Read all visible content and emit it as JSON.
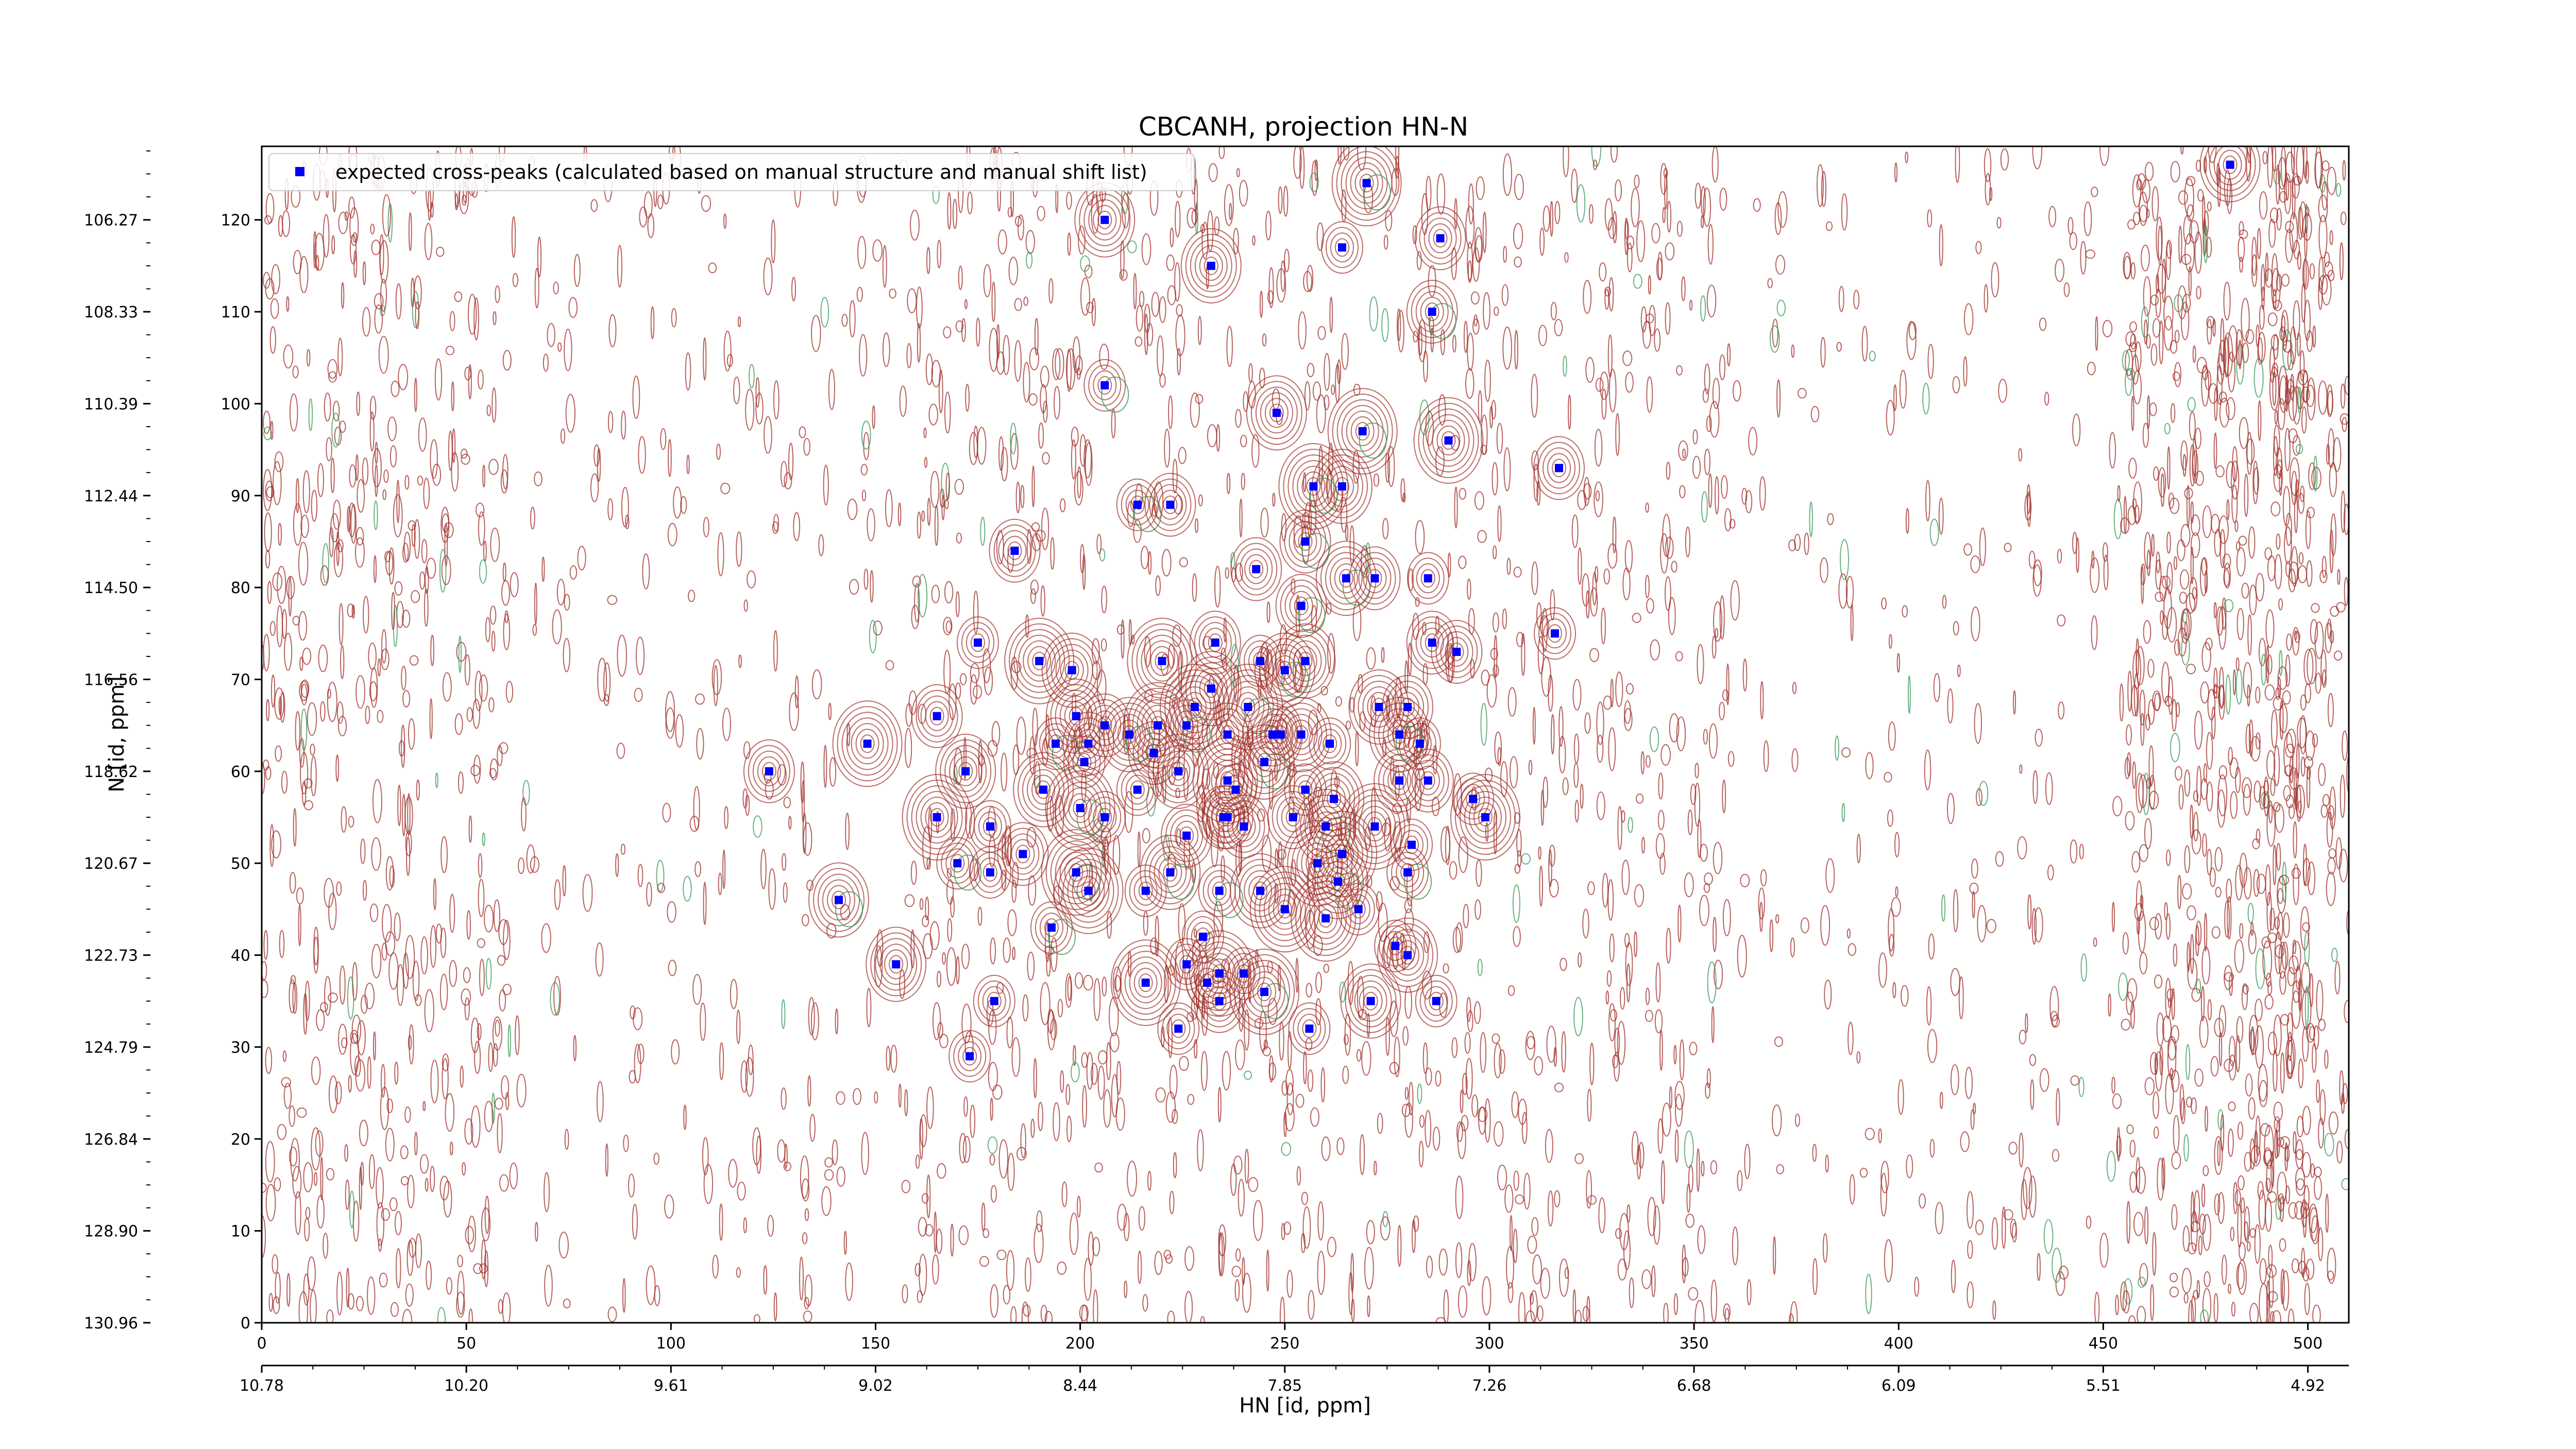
{
  "chart_data": {
    "type": "scatter",
    "title": "CBCANH, projection HN-N",
    "xlabel": "HN [id, ppm]",
    "ylabel": "N [id, ppm]",
    "xlim": [
      0,
      510
    ],
    "ylim": [
      0,
      128
    ],
    "x_ticks": [
      0,
      50,
      100,
      150,
      200,
      250,
      300,
      350,
      400,
      450,
      500
    ],
    "y_ticks": [
      0,
      10,
      20,
      30,
      40,
      50,
      60,
      70,
      80,
      90,
      100,
      110,
      120
    ],
    "hn_ppm_ticks": [
      "10.78",
      "10.20",
      "9.61",
      "9.02",
      "8.44",
      "7.85",
      "7.26",
      "6.68",
      "6.09",
      "5.51",
      "4.92"
    ],
    "n_ppm_ticks": [
      "130.96",
      "128.90",
      "126.84",
      "124.79",
      "122.73",
      "120.67",
      "118.62",
      "116.56",
      "114.50",
      "112.44",
      "110.39",
      "108.33",
      "106.27"
    ],
    "grid": false,
    "legend": {
      "position": "top-left",
      "entries": [
        "expected cross-peaks (calculated based on manual structure and manual shift list)"
      ]
    },
    "colors": {
      "marker": "#0000ff",
      "contour_positive": "#a0302a",
      "contour_negative": "#3a9a5a"
    },
    "series": [
      {
        "name": "expected cross-peaks (calculated based on manual structure and manual shift list)",
        "points": [
          [
            270,
            124
          ],
          [
            206,
            120
          ],
          [
            232,
            115
          ],
          [
            264,
            117
          ],
          [
            288,
            118
          ],
          [
            286,
            110
          ],
          [
            206,
            102
          ],
          [
            248,
            99
          ],
          [
            269,
            97
          ],
          [
            290,
            96
          ],
          [
            317,
            93
          ],
          [
            214,
            89
          ],
          [
            222,
            89
          ],
          [
            257,
            91
          ],
          [
            264,
            91
          ],
          [
            184,
            84
          ],
          [
            255,
            85
          ],
          [
            243,
            82
          ],
          [
            265,
            81
          ],
          [
            272,
            81
          ],
          [
            285,
            81
          ],
          [
            254,
            78
          ],
          [
            316,
            75
          ],
          [
            175,
            74
          ],
          [
            233,
            74
          ],
          [
            292,
            73
          ],
          [
            286,
            74
          ],
          [
            190,
            72
          ],
          [
            220,
            72
          ],
          [
            244,
            72
          ],
          [
            255,
            72
          ],
          [
            250,
            71
          ],
          [
            198,
            71
          ],
          [
            228,
            67
          ],
          [
            241,
            67
          ],
          [
            232,
            69
          ],
          [
            226,
            65
          ],
          [
            219,
            65
          ],
          [
            206,
            65
          ],
          [
            199,
            66
          ],
          [
            194,
            63
          ],
          [
            202,
            63
          ],
          [
            212,
            64
          ],
          [
            236,
            64
          ],
          [
            247,
            64
          ],
          [
            254,
            64
          ],
          [
            261,
            63
          ],
          [
            273,
            67
          ],
          [
            280,
            67
          ],
          [
            283,
            63
          ],
          [
            278,
            64
          ],
          [
            165,
            66
          ],
          [
            148,
            63
          ],
          [
            124,
            60
          ],
          [
            172,
            60
          ],
          [
            201,
            61
          ],
          [
            218,
            62
          ],
          [
            224,
            60
          ],
          [
            236,
            59
          ],
          [
            245,
            61
          ],
          [
            249,
            64
          ],
          [
            238,
            58
          ],
          [
            191,
            58
          ],
          [
            200,
            56
          ],
          [
            214,
            58
          ],
          [
            235,
            55
          ],
          [
            255,
            58
          ],
          [
            262,
            57
          ],
          [
            278,
            59
          ],
          [
            285,
            59
          ],
          [
            296,
            57
          ],
          [
            299,
            55
          ],
          [
            206,
            55
          ],
          [
            236,
            55
          ],
          [
            165,
            55
          ],
          [
            178,
            54
          ],
          [
            186,
            51
          ],
          [
            199,
            49
          ],
          [
            226,
            53
          ],
          [
            240,
            54
          ],
          [
            252,
            55
          ],
          [
            260,
            54
          ],
          [
            264,
            51
          ],
          [
            272,
            54
          ],
          [
            281,
            52
          ],
          [
            258,
            50
          ],
          [
            222,
            49
          ],
          [
            202,
            47
          ],
          [
            216,
            47
          ],
          [
            234,
            47
          ],
          [
            244,
            47
          ],
          [
            250,
            45
          ],
          [
            263,
            48
          ],
          [
            268,
            45
          ],
          [
            280,
            49
          ],
          [
            170,
            50
          ],
          [
            178,
            49
          ],
          [
            141,
            46
          ],
          [
            260,
            44
          ],
          [
            193,
            43
          ],
          [
            230,
            42
          ],
          [
            155,
            39
          ],
          [
            226,
            39
          ],
          [
            234,
            38
          ],
          [
            240,
            38
          ],
          [
            277,
            41
          ],
          [
            280,
            40
          ],
          [
            231,
            37
          ],
          [
            245,
            36
          ],
          [
            216,
            37
          ],
          [
            179,
            35
          ],
          [
            234,
            35
          ],
          [
            271,
            35
          ],
          [
            287,
            35
          ],
          [
            224,
            32
          ],
          [
            256,
            32
          ],
          [
            173,
            29
          ],
          [
            481,
            126
          ]
        ]
      }
    ]
  }
}
